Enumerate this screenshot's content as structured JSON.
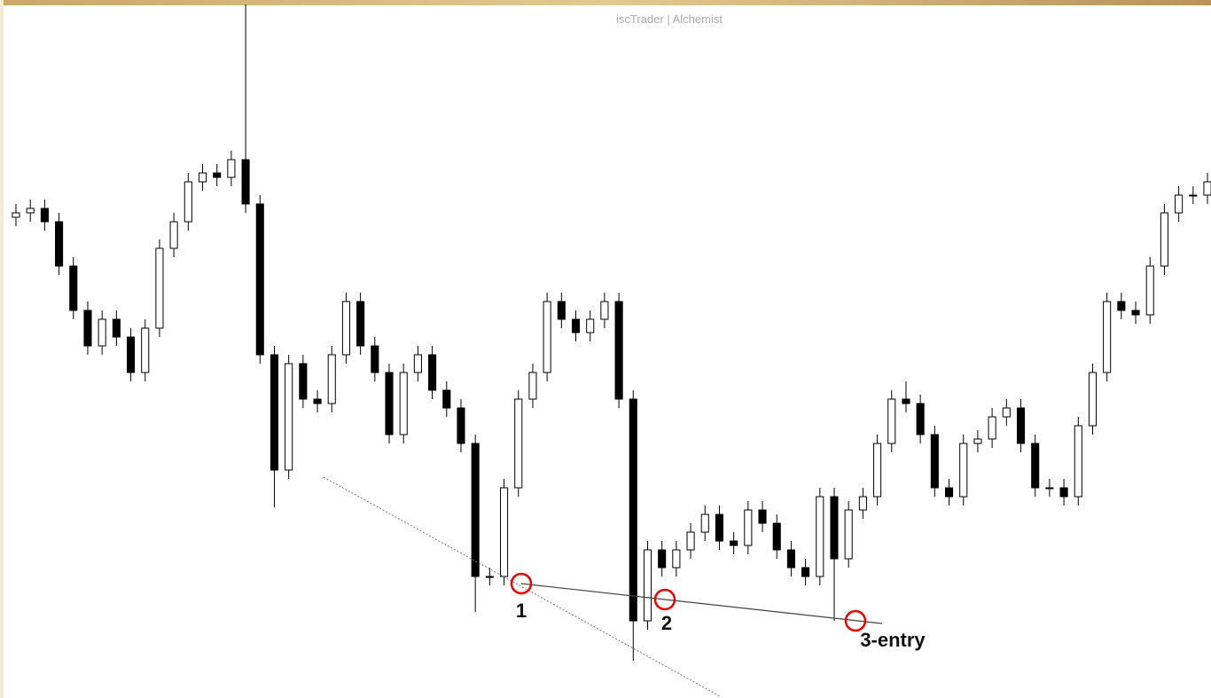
{
  "chart_data": {
    "type": "candlestick",
    "title": "iscTrader | Alchemist",
    "annotations": [
      "1",
      "2",
      "3-entry"
    ],
    "ylim": [
      0,
      787
    ],
    "bull_color": "#ffffff",
    "bear_color": "#000000",
    "wick_color": "#000000",
    "open": [
      542,
      547,
      552,
      537,
      487,
      437,
      397,
      427,
      407,
      367,
      417,
      507,
      537,
      582,
      592,
      587,
      607,
      557,
      387,
      257,
      377,
      337,
      332,
      387,
      447,
      397,
      367,
      297,
      367,
      387,
      347,
      327,
      287,
      137,
      137,
      237,
      337,
      367,
      447,
      427,
      412,
      427,
      447,
      337,
      87,
      167,
      147,
      167,
      187,
      207,
      177,
      172,
      212,
      197,
      167,
      147,
      137,
      227,
      157,
      212,
      227,
      287,
      337,
      332,
      297,
      237,
      227,
      287,
      292,
      317,
      327,
      287,
      237,
      237,
      227,
      307,
      367,
      447,
      437,
      432,
      487,
      547,
      567,
      567
    ],
    "high": [
      557,
      562,
      562,
      547,
      497,
      447,
      437,
      437,
      417,
      427,
      517,
      547,
      592,
      602,
      602,
      617,
      782,
      567,
      397,
      387,
      387,
      347,
      397,
      457,
      457,
      407,
      377,
      377,
      397,
      397,
      357,
      337,
      297,
      147,
      247,
      347,
      377,
      457,
      457,
      437,
      437,
      457,
      457,
      347,
      177,
      177,
      177,
      197,
      217,
      217,
      187,
      222,
      222,
      207,
      177,
      157,
      237,
      237,
      222,
      237,
      297,
      347,
      357,
      342,
      307,
      247,
      297,
      302,
      327,
      337,
      337,
      297,
      247,
      247,
      317,
      377,
      457,
      457,
      447,
      497,
      557,
      577,
      577,
      592
    ],
    "low": [
      532,
      537,
      527,
      477,
      427,
      387,
      387,
      397,
      357,
      357,
      407,
      497,
      527,
      572,
      577,
      577,
      547,
      377,
      215,
      247,
      327,
      322,
      322,
      377,
      387,
      357,
      287,
      287,
      357,
      337,
      317,
      277,
      97,
      127,
      127,
      227,
      327,
      357,
      417,
      402,
      402,
      417,
      327,
      42,
      77,
      137,
      137,
      157,
      177,
      167,
      162,
      162,
      187,
      157,
      137,
      127,
      127,
      87,
      147,
      202,
      217,
      277,
      322,
      287,
      227,
      217,
      217,
      277,
      282,
      307,
      277,
      227,
      227,
      217,
      217,
      297,
      357,
      427,
      422,
      422,
      477,
      537,
      557,
      557
    ],
    "close": [
      547,
      552,
      537,
      487,
      437,
      397,
      427,
      407,
      367,
      417,
      507,
      537,
      582,
      592,
      587,
      607,
      557,
      387,
      257,
      377,
      337,
      332,
      387,
      447,
      397,
      367,
      297,
      367,
      387,
      347,
      327,
      287,
      137,
      137,
      237,
      337,
      367,
      447,
      427,
      412,
      427,
      447,
      337,
      87,
      167,
      147,
      167,
      187,
      207,
      177,
      172,
      212,
      197,
      167,
      147,
      137,
      227,
      157,
      212,
      227,
      287,
      337,
      332,
      297,
      237,
      227,
      287,
      292,
      317,
      327,
      287,
      237,
      237,
      227,
      307,
      367,
      447,
      437,
      432,
      487,
      547,
      567,
      567,
      582
    ]
  }
}
